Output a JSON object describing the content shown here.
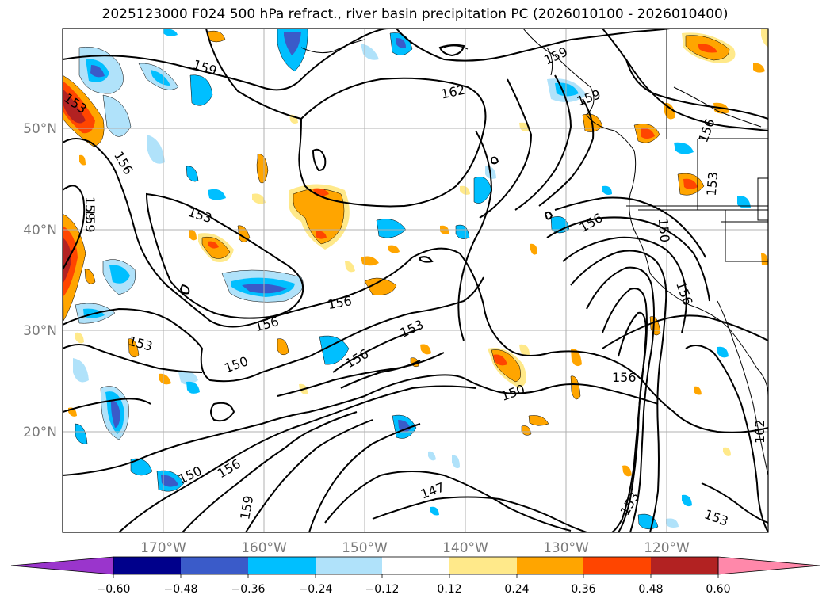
{
  "title": "2025123000 F024 500 hPa refract., river basin precipitation PC (2026010100 - 2026010400)",
  "map": {
    "lon_labels": [
      "170°W",
      "160°W",
      "150°W",
      "140°W",
      "130°W",
      "120°W"
    ],
    "lat_labels": [
      "50°N",
      "40°N",
      "30°N",
      "20°N"
    ],
    "contour_labels": [
      "159",
      "162",
      "159",
      "159",
      "156",
      "153",
      "156",
      "153",
      "156",
      "159",
      "156",
      "153",
      "156",
      "150",
      "156",
      "153",
      "150",
      "156",
      "150",
      "156",
      "159",
      "147",
      "153",
      "162",
      "153",
      "159",
      "150",
      "153",
      "156"
    ]
  },
  "colorbar": {
    "tick_labels": [
      "−0.60",
      "−0.48",
      "−0.36",
      "−0.24",
      "−0.12",
      "0.12",
      "0.24",
      "0.36",
      "0.48",
      "0.60"
    ],
    "colors": [
      "#9a35cc",
      "#00008b",
      "#3a5bc9",
      "#00bfff",
      "#b0e2fa",
      "#ffffff",
      "#ffe98a",
      "#ffa500",
      "#ff4500",
      "#b22222",
      "#ff88aa"
    ]
  }
}
